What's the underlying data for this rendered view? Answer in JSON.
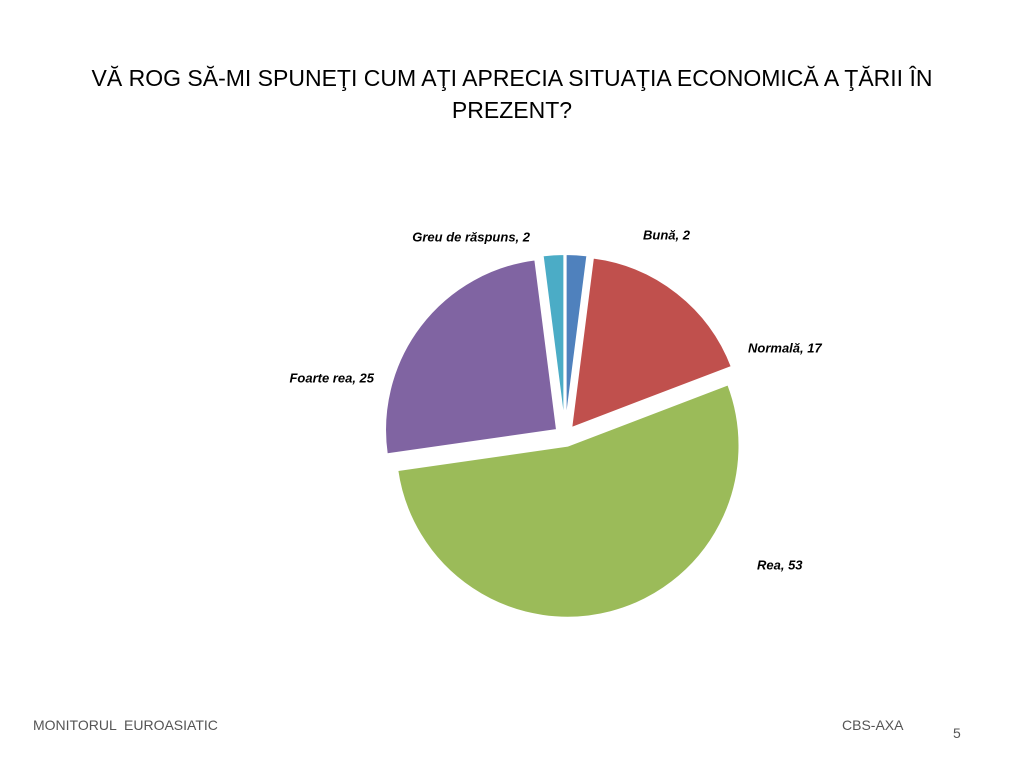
{
  "chart_data": {
    "type": "pie",
    "title": "VĂ ROG SĂ-MI SPUNEŢI CUM AŢI APRECIA SITUAŢIA ECONOMICĂ A ŢĂRII ÎN PREZENT?",
    "categories": [
      "Bună",
      "Normală",
      "Rea",
      "Foarte rea",
      "Greu de răspuns"
    ],
    "values": [
      2,
      17,
      53,
      25,
      2
    ],
    "value_labels": [
      "Bună, 2",
      "Normală, 17",
      "Rea, 53",
      "Foarte rea, 25",
      "Greu de răspuns, 2"
    ],
    "colors": [
      "#4f81bd",
      "#c0504d",
      "#9bbb59",
      "#8064a2",
      "#4bacc6"
    ]
  },
  "footer": {
    "left": "MONITORUL  EUROASIATIC",
    "right": "CBS-AXA",
    "page": "5"
  }
}
